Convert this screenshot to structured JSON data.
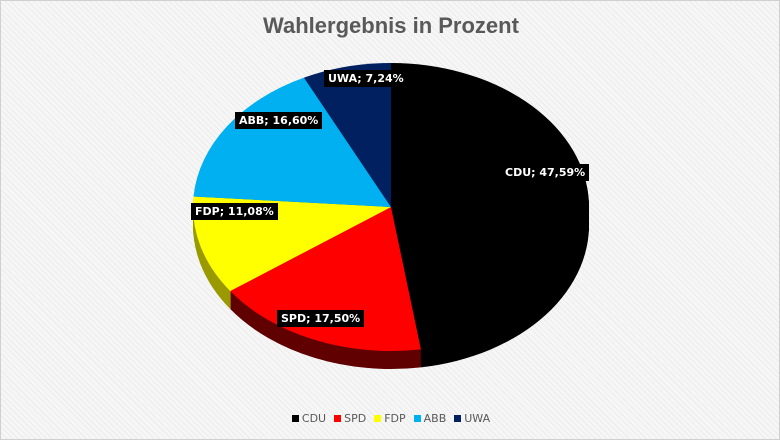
{
  "chart_data": {
    "type": "pie",
    "style": "3d",
    "title": "Wahlergebnis in Prozent",
    "categories": [
      "CDU",
      "SPD",
      "FDP",
      "ABB",
      "UWA"
    ],
    "values": [
      47.59,
      17.5,
      11.08,
      16.6,
      7.24
    ],
    "data_labels": [
      "CDU; 47,59%",
      "SPD; 17,50%",
      "FDP; 11,08%",
      "ABB; 16,60%",
      "UWA; 7,24%"
    ],
    "colors": [
      "#000000",
      "#ff0000",
      "#ffff00",
      "#00b0f0",
      "#002060"
    ],
    "side_colors": [
      "#000000",
      "#600000",
      "#9a9a00",
      "#006a90",
      "#001030"
    ],
    "legend_position": "bottom"
  }
}
